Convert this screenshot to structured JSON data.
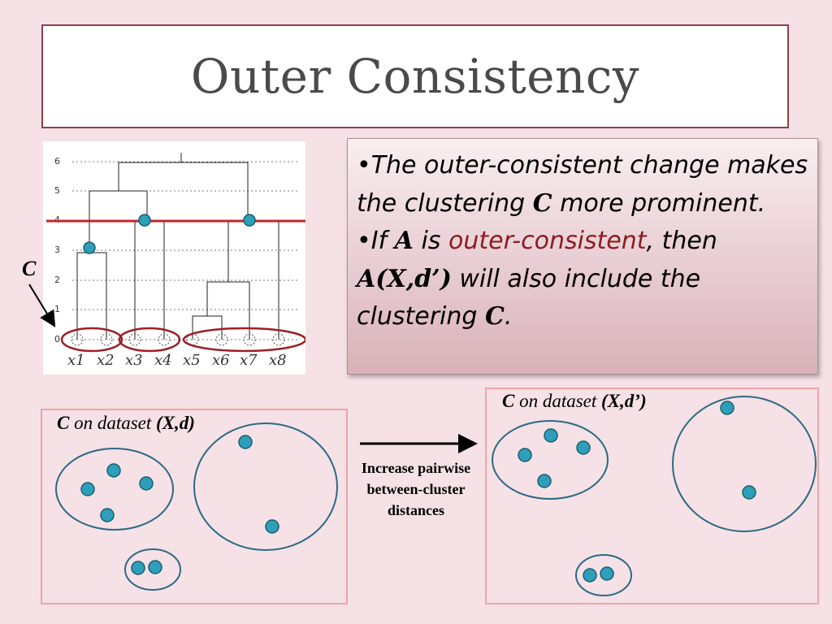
{
  "title": "Outer Consistency",
  "bullets": {
    "b1": {
      "prefix": "•",
      "text1": "The outer-consistent change makes the clustering ",
      "bold_c": "C",
      "text2": " more prominent."
    },
    "b2": {
      "prefix": "•",
      "text_if": "If ",
      "bold_a": "A",
      "text_is": " is ",
      "red_text": "outer-consistent",
      "text_then": ", then ",
      "bold_axd": "A(X,d’)",
      "text_will": " will also include the clustering ",
      "bold_c": "C",
      "text_end": "."
    }
  },
  "dendrogram": {
    "y_ticks": [
      "6",
      "5",
      "4",
      "3",
      "2",
      "1",
      "0"
    ],
    "x_labels": [
      "x1",
      "x2",
      "x3",
      "x4",
      "x5",
      "x6",
      "x7",
      "x8"
    ],
    "c_label": "C",
    "cut_level": 4,
    "line_color": "#c0262d",
    "node_color": "#2e9fba"
  },
  "left_panel": {
    "c": "C",
    "on_dataset": " on dataset ",
    "dataset": "(X,d)"
  },
  "right_panel": {
    "c": "C",
    "on_dataset": " on dataset ",
    "dataset": "(X,d’)"
  },
  "arrow_text": {
    "line1": "Increase pairwise",
    "line2": "between-cluster",
    "line3": "distances"
  },
  "colors": {
    "background": "#f5e1e6",
    "title_border": "#8e3f4a",
    "panel_border": "#f0a4a8",
    "point_fill": "#2e9fba",
    "cluster_stroke": "#2b6a82",
    "red_text": "#8c1c22"
  }
}
